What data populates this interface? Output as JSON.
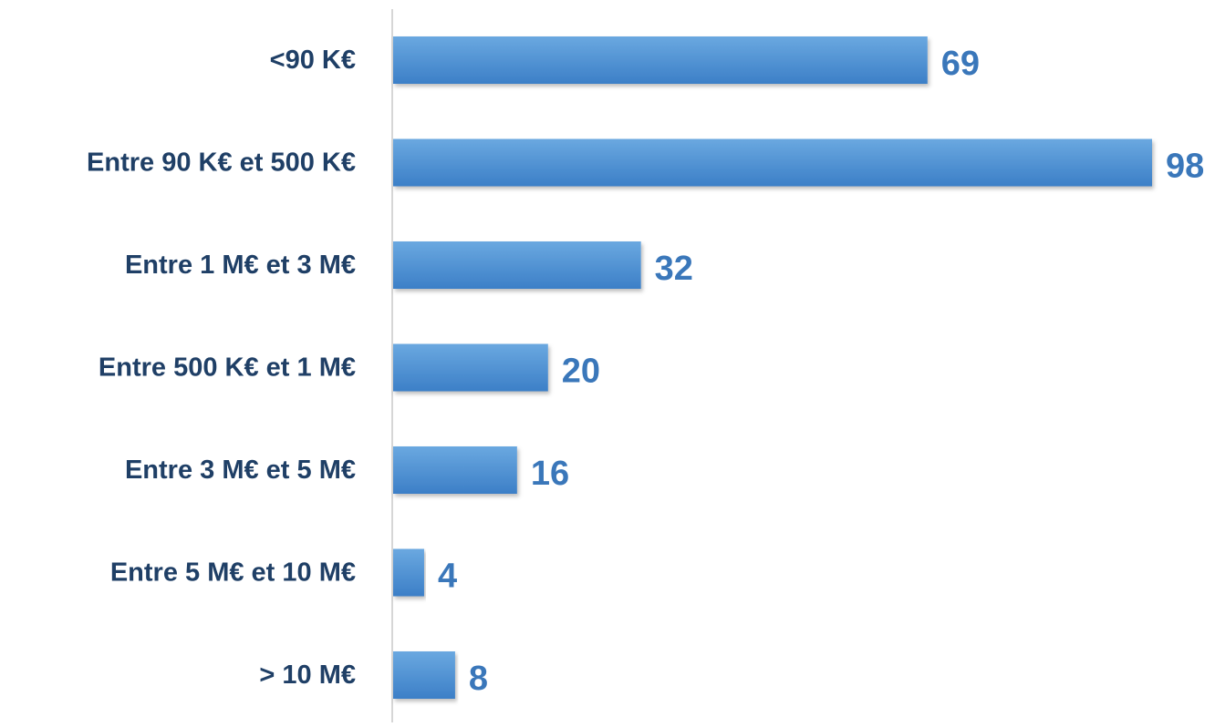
{
  "chart_data": {
    "type": "bar",
    "orientation": "horizontal",
    "categories": [
      "<90 K€",
      "Entre 90 K€ et 500 K€",
      "Entre 1 M€ et 3 M€",
      "Entre 500 K€ et 1 M€",
      "Entre 3 M€ et 5 M€",
      "Entre 5 M€ et 10 M€",
      "> 10 M€"
    ],
    "values": [
      69,
      98,
      32,
      20,
      16,
      4,
      8
    ],
    "data_labels": [
      "69",
      "98",
      "32",
      "20",
      "16",
      "4",
      "8"
    ],
    "title": "",
    "xlabel": "",
    "ylabel": "",
    "xlim": [
      0,
      98
    ],
    "grid": false,
    "legend": "none",
    "colors": {
      "bar_top": "#6aa8e0",
      "bar_bottom": "#3c7fc7",
      "category_text": "#1f3f66",
      "value_text": "#3a77ba",
      "axis": "#c8c8c8"
    }
  }
}
